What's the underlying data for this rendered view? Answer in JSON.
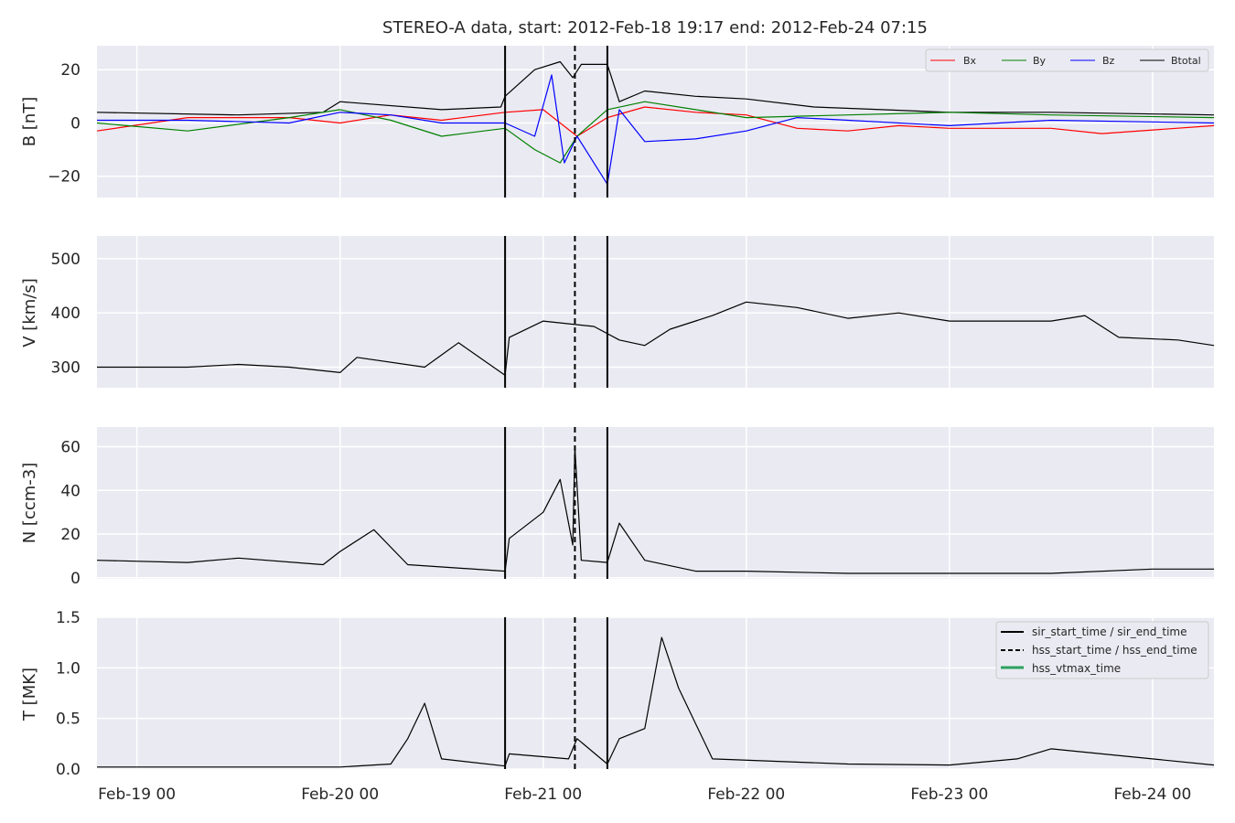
{
  "title": "STEREO-A data, start: 2012-Feb-18 19:17  end: 2012-Feb-24 07:15",
  "colors": {
    "panel_bg": "#eaeaf2",
    "grid": "#ffffff",
    "text": "#262626",
    "bx": "#ff0000",
    "by": "#008000",
    "bz": "#0000ff",
    "btotal": "#000000",
    "event_line": "#000000",
    "vtmax": "#2ca25f"
  },
  "chart_data": {
    "type": "line",
    "time_axis": {
      "range": [
        "2012-02-18T19:17",
        "2012-02-24T07:15"
      ],
      "tick_labels": [
        "Feb-19 00",
        "Feb-20 00",
        "Feb-21 00",
        "Feb-22 00",
        "Feb-23 00",
        "Feb-24 00"
      ],
      "tick_times": [
        "2012-02-19T00:00",
        "2012-02-20T00:00",
        "2012-02-21T00:00",
        "2012-02-22T00:00",
        "2012-02-23T00:00",
        "2012-02-24T00:00"
      ]
    },
    "events": {
      "sir_start_time": "2012-02-20T19:30",
      "hss_start_time": "2012-02-21T03:45",
      "sir_end_time": "2012-02-21T07:35"
    },
    "panels": [
      {
        "id": "B",
        "ylabel": "B [nT]",
        "ylim": [
          -28,
          29
        ],
        "yticks": [
          -20,
          0,
          20
        ],
        "ytick_labels": [
          "−20",
          "0",
          "20"
        ],
        "legend": {
          "placement": "upper right",
          "entries": [
            "Bx",
            "By",
            "Bz",
            "Btotal"
          ]
        },
        "series": [
          {
            "name": "Btotal",
            "color_key": "btotal",
            "points": [
              [
                "2012-02-18T19:17",
                4
              ],
              [
                "2012-02-19T12:00",
                3
              ],
              [
                "2012-02-19T22:00",
                4
              ],
              [
                "2012-02-20T00:00",
                8
              ],
              [
                "2012-02-20T12:00",
                5
              ],
              [
                "2012-02-20T19:00",
                6
              ],
              [
                "2012-02-20T19:30",
                10
              ],
              [
                "2012-02-20T23:00",
                20
              ],
              [
                "2012-02-21T02:00",
                23
              ],
              [
                "2012-02-21T03:30",
                17
              ],
              [
                "2012-02-21T04:30",
                22
              ],
              [
                "2012-02-21T07:35",
                22
              ],
              [
                "2012-02-21T09:00",
                8
              ],
              [
                "2012-02-21T12:00",
                12
              ],
              [
                "2012-02-21T18:00",
                10
              ],
              [
                "2012-02-22T00:00",
                9
              ],
              [
                "2012-02-22T08:00",
                6
              ],
              [
                "2012-02-22T16:00",
                5
              ],
              [
                "2012-02-23T00:00",
                4
              ],
              [
                "2012-02-23T12:00",
                4
              ],
              [
                "2012-02-24T07:15",
                3
              ]
            ]
          },
          {
            "name": "Bx",
            "color_key": "bx",
            "points": [
              [
                "2012-02-18T19:17",
                -3
              ],
              [
                "2012-02-19T06:00",
                2
              ],
              [
                "2012-02-19T18:00",
                2
              ],
              [
                "2012-02-20T00:00",
                0
              ],
              [
                "2012-02-20T06:00",
                3
              ],
              [
                "2012-02-20T12:00",
                1
              ],
              [
                "2012-02-20T19:30",
                4
              ],
              [
                "2012-02-21T00:00",
                5
              ],
              [
                "2012-02-21T04:00",
                -5
              ],
              [
                "2012-02-21T07:35",
                2
              ],
              [
                "2012-02-21T12:00",
                6
              ],
              [
                "2012-02-21T18:00",
                4
              ],
              [
                "2012-02-22T00:00",
                3
              ],
              [
                "2012-02-22T06:00",
                -2
              ],
              [
                "2012-02-22T12:00",
                -3
              ],
              [
                "2012-02-22T18:00",
                -1
              ],
              [
                "2012-02-23T00:00",
                -2
              ],
              [
                "2012-02-23T12:00",
                -2
              ],
              [
                "2012-02-23T18:00",
                -4
              ],
              [
                "2012-02-24T07:15",
                -1
              ]
            ]
          },
          {
            "name": "By",
            "color_key": "by",
            "points": [
              [
                "2012-02-18T19:17",
                0
              ],
              [
                "2012-02-19T06:00",
                -3
              ],
              [
                "2012-02-19T18:00",
                2
              ],
              [
                "2012-02-20T00:00",
                5
              ],
              [
                "2012-02-20T06:00",
                1
              ],
              [
                "2012-02-20T12:00",
                -5
              ],
              [
                "2012-02-20T19:30",
                -2
              ],
              [
                "2012-02-20T23:00",
                -10
              ],
              [
                "2012-02-21T02:00",
                -15
              ],
              [
                "2012-02-21T04:00",
                -5
              ],
              [
                "2012-02-21T07:35",
                5
              ],
              [
                "2012-02-21T12:00",
                8
              ],
              [
                "2012-02-21T18:00",
                5
              ],
              [
                "2012-02-22T00:00",
                2
              ],
              [
                "2012-02-22T12:00",
                3
              ],
              [
                "2012-02-23T00:00",
                4
              ],
              [
                "2012-02-23T12:00",
                3
              ],
              [
                "2012-02-24T07:15",
                2
              ]
            ]
          },
          {
            "name": "Bz",
            "color_key": "bz",
            "points": [
              [
                "2012-02-18T19:17",
                1
              ],
              [
                "2012-02-19T06:00",
                1
              ],
              [
                "2012-02-19T18:00",
                0
              ],
              [
                "2012-02-20T00:00",
                4
              ],
              [
                "2012-02-20T06:00",
                3
              ],
              [
                "2012-02-20T12:00",
                0
              ],
              [
                "2012-02-20T19:30",
                0
              ],
              [
                "2012-02-20T23:00",
                -5
              ],
              [
                "2012-02-21T01:00",
                18
              ],
              [
                "2012-02-21T02:30",
                -15
              ],
              [
                "2012-02-21T04:00",
                -5
              ],
              [
                "2012-02-21T07:35",
                -23
              ],
              [
                "2012-02-21T09:00",
                5
              ],
              [
                "2012-02-21T12:00",
                -7
              ],
              [
                "2012-02-21T18:00",
                -6
              ],
              [
                "2012-02-22T00:00",
                -3
              ],
              [
                "2012-02-22T06:00",
                2
              ],
              [
                "2012-02-22T12:00",
                1
              ],
              [
                "2012-02-23T00:00",
                -1
              ],
              [
                "2012-02-23T12:00",
                1
              ],
              [
                "2012-02-24T07:15",
                0
              ]
            ]
          }
        ]
      },
      {
        "id": "V",
        "ylabel": "V [km/s]",
        "ylim": [
          262,
          542
        ],
        "yticks": [
          300,
          400,
          500
        ],
        "ytick_labels": [
          "300",
          "400",
          "500"
        ],
        "series": [
          {
            "name": "V",
            "color_key": "btotal",
            "points": [
              [
                "2012-02-18T19:17",
                300
              ],
              [
                "2012-02-19T06:00",
                300
              ],
              [
                "2012-02-19T12:00",
                305
              ],
              [
                "2012-02-19T18:00",
                300
              ],
              [
                "2012-02-20T00:00",
                290
              ],
              [
                "2012-02-20T02:00",
                318
              ],
              [
                "2012-02-20T10:00",
                300
              ],
              [
                "2012-02-20T14:00",
                345
              ],
              [
                "2012-02-20T19:30",
                285
              ],
              [
                "2012-02-20T20:00",
                355
              ],
              [
                "2012-02-21T00:00",
                385
              ],
              [
                "2012-02-21T06:00",
                375
              ],
              [
                "2012-02-21T09:00",
                350
              ],
              [
                "2012-02-21T12:00",
                340
              ],
              [
                "2012-02-21T15:00",
                370
              ],
              [
                "2012-02-21T20:00",
                395
              ],
              [
                "2012-02-22T00:00",
                420
              ],
              [
                "2012-02-22T06:00",
                410
              ],
              [
                "2012-02-22T12:00",
                390
              ],
              [
                "2012-02-22T18:00",
                400
              ],
              [
                "2012-02-23T00:00",
                385
              ],
              [
                "2012-02-23T12:00",
                385
              ],
              [
                "2012-02-23T16:00",
                395
              ],
              [
                "2012-02-23T20:00",
                355
              ],
              [
                "2012-02-24T03:00",
                350
              ],
              [
                "2012-02-24T07:15",
                340
              ]
            ]
          }
        ]
      },
      {
        "id": "N",
        "ylabel": "N [ccm-3]",
        "ylim": [
          -0.5,
          69
        ],
        "yticks": [
          0,
          20,
          40,
          60
        ],
        "ytick_labels": [
          "0",
          "20",
          "40",
          "60"
        ],
        "series": [
          {
            "name": "N",
            "color_key": "btotal",
            "points": [
              [
                "2012-02-18T19:17",
                8
              ],
              [
                "2012-02-19T06:00",
                7
              ],
              [
                "2012-02-19T12:00",
                9
              ],
              [
                "2012-02-19T22:00",
                6
              ],
              [
                "2012-02-20T00:00",
                12
              ],
              [
                "2012-02-20T04:00",
                22
              ],
              [
                "2012-02-20T08:00",
                6
              ],
              [
                "2012-02-20T19:30",
                3
              ],
              [
                "2012-02-20T20:00",
                18
              ],
              [
                "2012-02-21T00:00",
                30
              ],
              [
                "2012-02-21T02:00",
                45
              ],
              [
                "2012-02-21T03:30",
                15
              ],
              [
                "2012-02-21T03:45",
                60
              ],
              [
                "2012-02-21T04:30",
                8
              ],
              [
                "2012-02-21T07:35",
                7
              ],
              [
                "2012-02-21T09:00",
                25
              ],
              [
                "2012-02-21T12:00",
                8
              ],
              [
                "2012-02-21T18:00",
                3
              ],
              [
                "2012-02-22T00:00",
                3
              ],
              [
                "2012-02-22T12:00",
                2
              ],
              [
                "2012-02-23T00:00",
                2
              ],
              [
                "2012-02-23T12:00",
                2
              ],
              [
                "2012-02-24T00:00",
                4
              ],
              [
                "2012-02-24T07:15",
                4
              ]
            ]
          }
        ]
      },
      {
        "id": "T",
        "ylabel": "T [MK]",
        "ylim": [
          0,
          1.5
        ],
        "yticks": [
          0.0,
          0.5,
          1.0,
          1.5
        ],
        "ytick_labels": [
          "0.0",
          "0.5",
          "1.0",
          "1.5"
        ],
        "legend": {
          "placement": "upper right",
          "entries": [
            "sir_start_time / sir_end_time",
            "hss_start_time / hss_end_time",
            "hss_vtmax_time"
          ]
        },
        "series": [
          {
            "name": "T",
            "color_key": "btotal",
            "points": [
              [
                "2012-02-18T19:17",
                0.02
              ],
              [
                "2012-02-20T00:00",
                0.02
              ],
              [
                "2012-02-20T06:00",
                0.05
              ],
              [
                "2012-02-20T08:00",
                0.3
              ],
              [
                "2012-02-20T10:00",
                0.65
              ],
              [
                "2012-02-20T12:00",
                0.1
              ],
              [
                "2012-02-20T19:30",
                0.03
              ],
              [
                "2012-02-20T20:00",
                0.15
              ],
              [
                "2012-02-21T03:00",
                0.1
              ],
              [
                "2012-02-21T04:00",
                0.3
              ],
              [
                "2012-02-21T07:35",
                0.05
              ],
              [
                "2012-02-21T09:00",
                0.3
              ],
              [
                "2012-02-21T12:00",
                0.4
              ],
              [
                "2012-02-21T14:00",
                1.3
              ],
              [
                "2012-02-21T16:00",
                0.8
              ],
              [
                "2012-02-21T20:00",
                0.1
              ],
              [
                "2012-02-22T12:00",
                0.05
              ],
              [
                "2012-02-23T00:00",
                0.04
              ],
              [
                "2012-02-23T08:00",
                0.1
              ],
              [
                "2012-02-23T12:00",
                0.2
              ],
              [
                "2012-02-24T07:15",
                0.04
              ]
            ]
          }
        ]
      }
    ]
  }
}
